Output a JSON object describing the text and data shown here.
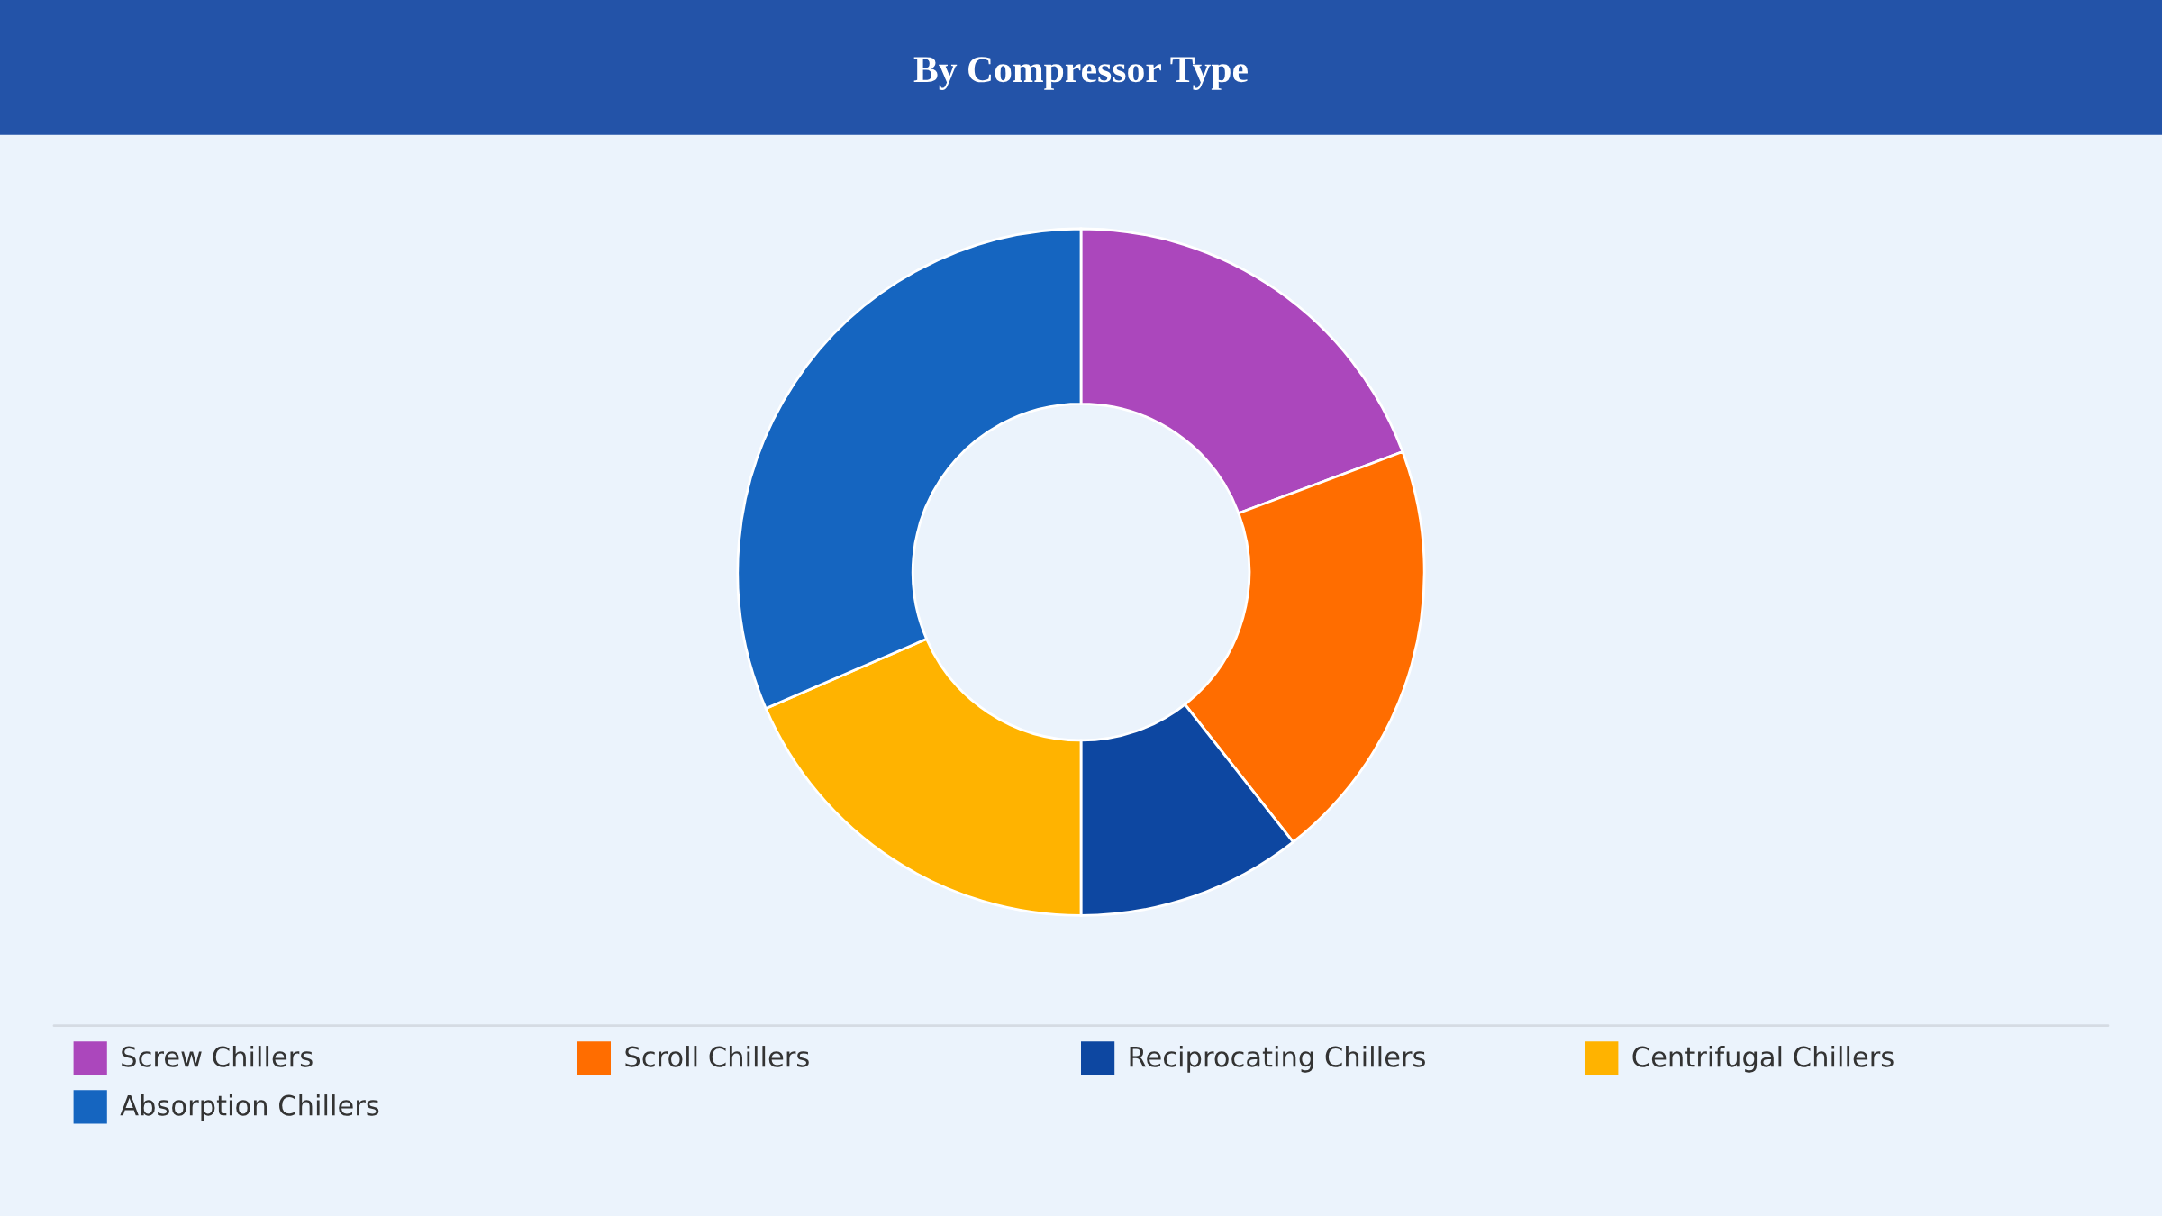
{
  "chart_data": {
    "type": "donut",
    "title": "By Compressor Type",
    "categories": [
      "Screw Chillers",
      "Scroll Chillers",
      "Reciprocating Chillers",
      "Centrifugal Chillers",
      "Absorption Chillers"
    ],
    "values": [
      19.3,
      20.1,
      10.6,
      18.5,
      31.5
    ],
    "colors": [
      "#ab47bc",
      "#ff6d00",
      "#0d47a1",
      "#ffb300",
      "#1565c0"
    ],
    "legend": "bottom"
  }
}
